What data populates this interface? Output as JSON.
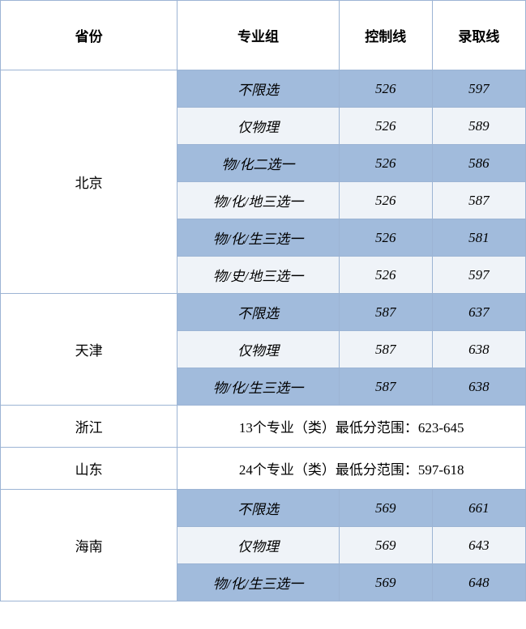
{
  "headers": {
    "province": "省份",
    "group": "专业组",
    "control": "控制线",
    "admit": "录取线"
  },
  "colors": {
    "band_dark": "#a1bbdc",
    "band_light": "#eff3f8",
    "border": "#9cb4d4",
    "text": "#000000",
    "bg": "#ffffff"
  },
  "provinces": [
    {
      "name": "北京",
      "rows": [
        {
          "group": "不限选",
          "control": "526",
          "admit": "597"
        },
        {
          "group": "仅物理",
          "control": "526",
          "admit": "589"
        },
        {
          "group": "物/化二选一",
          "control": "526",
          "admit": "586"
        },
        {
          "group": "物/化/地三选一",
          "control": "526",
          "admit": "587"
        },
        {
          "group": "物/化/生三选一",
          "control": "526",
          "admit": "581"
        },
        {
          "group": "物/史/地三选一",
          "control": "526",
          "admit": "597"
        }
      ]
    },
    {
      "name": "天津",
      "rows": [
        {
          "group": "不限选",
          "control": "587",
          "admit": "637"
        },
        {
          "group": "仅物理",
          "control": "587",
          "admit": "638"
        },
        {
          "group": "物/化/生三选一",
          "control": "587",
          "admit": "638"
        }
      ]
    },
    {
      "name": "浙江",
      "note": "13个专业（类）最低分范围：623-645"
    },
    {
      "name": "山东",
      "note": "24个专业（类）最低分范围：597-618"
    },
    {
      "name": "海南",
      "rows": [
        {
          "group": "不限选",
          "control": "569",
          "admit": "661"
        },
        {
          "group": "仅物理",
          "control": "569",
          "admit": "643"
        },
        {
          "group": "物/化/生三选一",
          "control": "569",
          "admit": "648"
        }
      ]
    }
  ]
}
